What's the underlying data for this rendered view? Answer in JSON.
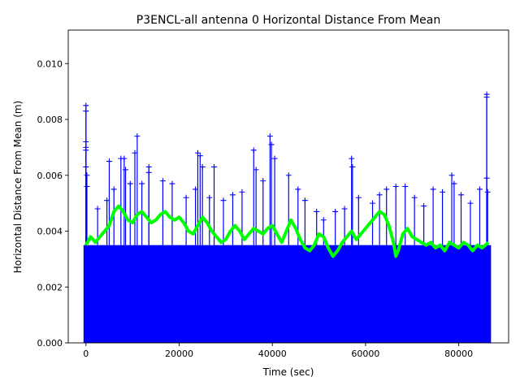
{
  "chart_data": {
    "type": "scatter",
    "title": "P3ENCL-all antenna 0 Horizontal Distance From Mean",
    "xlabel": "Time (sec)",
    "ylabel": "Horizontal Distance From Mean (m)",
    "xlim": [
      -3800,
      90700
    ],
    "ylim": [
      0.0,
      0.0112
    ],
    "x_ticks": [
      0,
      20000,
      40000,
      60000,
      80000
    ],
    "x_tick_labels": [
      "0",
      "20000",
      "40000",
      "60000",
      "80000"
    ],
    "y_ticks": [
      0.0,
      0.002,
      0.004,
      0.006,
      0.008,
      0.01
    ],
    "y_tick_labels": [
      "0.000",
      "0.002",
      "0.004",
      "0.006",
      "0.008",
      "0.010"
    ],
    "grid": false,
    "series": [
      {
        "marker": "+",
        "color": "#0000ff",
        "x_range": [
          0,
          86400
        ],
        "dense_band_y": [
          0.0,
          0.0035
        ],
        "sparse_points": [
          {
            "x": 0,
            "y": 0.0085
          },
          {
            "x": 0,
            "y": 0.0083
          },
          {
            "x": 0,
            "y": 0.0072
          },
          {
            "x": 0,
            "y": 0.007
          },
          {
            "x": 0,
            "y": 0.0069
          },
          {
            "x": 0,
            "y": 0.0063
          },
          {
            "x": 200,
            "y": 0.006
          },
          {
            "x": 200,
            "y": 0.0056
          },
          {
            "x": 2500,
            "y": 0.0048
          },
          {
            "x": 4500,
            "y": 0.0051
          },
          {
            "x": 5000,
            "y": 0.0065
          },
          {
            "x": 6000,
            "y": 0.0055
          },
          {
            "x": 7500,
            "y": 0.0066
          },
          {
            "x": 8200,
            "y": 0.0066
          },
          {
            "x": 8500,
            "y": 0.0062
          },
          {
            "x": 9500,
            "y": 0.0057
          },
          {
            "x": 10500,
            "y": 0.0068
          },
          {
            "x": 11000,
            "y": 0.0074
          },
          {
            "x": 12000,
            "y": 0.0057
          },
          {
            "x": 13500,
            "y": 0.0063
          },
          {
            "x": 13500,
            "y": 0.0061
          },
          {
            "x": 16500,
            "y": 0.0058
          },
          {
            "x": 18500,
            "y": 0.0057
          },
          {
            "x": 21500,
            "y": 0.0052
          },
          {
            "x": 23500,
            "y": 0.0055
          },
          {
            "x": 24000,
            "y": 0.0068
          },
          {
            "x": 24500,
            "y": 0.0067
          },
          {
            "x": 25000,
            "y": 0.0063
          },
          {
            "x": 26500,
            "y": 0.0052
          },
          {
            "x": 27500,
            "y": 0.0063
          },
          {
            "x": 29500,
            "y": 0.0051
          },
          {
            "x": 31500,
            "y": 0.0053
          },
          {
            "x": 33500,
            "y": 0.0054
          },
          {
            "x": 36000,
            "y": 0.0069
          },
          {
            "x": 36500,
            "y": 0.0062
          },
          {
            "x": 38000,
            "y": 0.0058
          },
          {
            "x": 39500,
            "y": 0.0074
          },
          {
            "x": 39800,
            "y": 0.0071
          },
          {
            "x": 40500,
            "y": 0.0066
          },
          {
            "x": 43500,
            "y": 0.006
          },
          {
            "x": 45500,
            "y": 0.0055
          },
          {
            "x": 47000,
            "y": 0.0051
          },
          {
            "x": 49500,
            "y": 0.0047
          },
          {
            "x": 51000,
            "y": 0.0044
          },
          {
            "x": 53500,
            "y": 0.0047
          },
          {
            "x": 55500,
            "y": 0.0048
          },
          {
            "x": 57000,
            "y": 0.0066
          },
          {
            "x": 57200,
            "y": 0.0063
          },
          {
            "x": 58500,
            "y": 0.0052
          },
          {
            "x": 61500,
            "y": 0.005
          },
          {
            "x": 63000,
            "y": 0.0053
          },
          {
            "x": 64500,
            "y": 0.0055
          },
          {
            "x": 66500,
            "y": 0.0056
          },
          {
            "x": 68500,
            "y": 0.0056
          },
          {
            "x": 70500,
            "y": 0.0052
          },
          {
            "x": 72500,
            "y": 0.0049
          },
          {
            "x": 74500,
            "y": 0.0055
          },
          {
            "x": 76500,
            "y": 0.0054
          },
          {
            "x": 78500,
            "y": 0.006
          },
          {
            "x": 79000,
            "y": 0.0057
          },
          {
            "x": 80500,
            "y": 0.0053
          },
          {
            "x": 82500,
            "y": 0.005
          },
          {
            "x": 84500,
            "y": 0.0055
          },
          {
            "x": 86000,
            "y": 0.0089
          },
          {
            "x": 86000,
            "y": 0.0088
          },
          {
            "x": 86000,
            "y": 0.0059
          },
          {
            "x": 86200,
            "y": 0.0054
          }
        ]
      },
      {
        "line": "running-mean",
        "color": "#00ff00",
        "points": [
          {
            "x": 0,
            "y": 0.0035
          },
          {
            "x": 1000,
            "y": 0.0038
          },
          {
            "x": 2000,
            "y": 0.0036
          },
          {
            "x": 3000,
            "y": 0.0038
          },
          {
            "x": 4000,
            "y": 0.004
          },
          {
            "x": 5000,
            "y": 0.0042
          },
          {
            "x": 6000,
            "y": 0.0047
          },
          {
            "x": 7000,
            "y": 0.0049
          },
          {
            "x": 8000,
            "y": 0.0047
          },
          {
            "x": 9000,
            "y": 0.0044
          },
          {
            "x": 10000,
            "y": 0.0043
          },
          {
            "x": 11000,
            "y": 0.0046
          },
          {
            "x": 12000,
            "y": 0.0047
          },
          {
            "x": 13000,
            "y": 0.0045
          },
          {
            "x": 14000,
            "y": 0.0043
          },
          {
            "x": 15000,
            "y": 0.0044
          },
          {
            "x": 16000,
            "y": 0.0046
          },
          {
            "x": 17000,
            "y": 0.0047
          },
          {
            "x": 18000,
            "y": 0.0045
          },
          {
            "x": 19000,
            "y": 0.0044
          },
          {
            "x": 20000,
            "y": 0.0045
          },
          {
            "x": 21000,
            "y": 0.0043
          },
          {
            "x": 22000,
            "y": 0.004
          },
          {
            "x": 23000,
            "y": 0.0039
          },
          {
            "x": 24000,
            "y": 0.0042
          },
          {
            "x": 25000,
            "y": 0.0045
          },
          {
            "x": 26000,
            "y": 0.0043
          },
          {
            "x": 27000,
            "y": 0.004
          },
          {
            "x": 28000,
            "y": 0.0038
          },
          {
            "x": 29000,
            "y": 0.0036
          },
          {
            "x": 30000,
            "y": 0.0037
          },
          {
            "x": 31000,
            "y": 0.004
          },
          {
            "x": 32000,
            "y": 0.0042
          },
          {
            "x": 33000,
            "y": 0.004
          },
          {
            "x": 34000,
            "y": 0.0037
          },
          {
            "x": 35000,
            "y": 0.0039
          },
          {
            "x": 36000,
            "y": 0.0041
          },
          {
            "x": 37000,
            "y": 0.004
          },
          {
            "x": 38000,
            "y": 0.0039
          },
          {
            "x": 39000,
            "y": 0.0041
          },
          {
            "x": 40000,
            "y": 0.0042
          },
          {
            "x": 41000,
            "y": 0.0039
          },
          {
            "x": 42000,
            "y": 0.0036
          },
          {
            "x": 43000,
            "y": 0.004
          },
          {
            "x": 44000,
            "y": 0.0044
          },
          {
            "x": 45000,
            "y": 0.0041
          },
          {
            "x": 46000,
            "y": 0.0037
          },
          {
            "x": 47000,
            "y": 0.0034
          },
          {
            "x": 48000,
            "y": 0.0033
          },
          {
            "x": 49000,
            "y": 0.0035
          },
          {
            "x": 50000,
            "y": 0.0039
          },
          {
            "x": 51000,
            "y": 0.0038
          },
          {
            "x": 52000,
            "y": 0.0034
          },
          {
            "x": 53000,
            "y": 0.0031
          },
          {
            "x": 54000,
            "y": 0.0033
          },
          {
            "x": 55000,
            "y": 0.0036
          },
          {
            "x": 56000,
            "y": 0.0038
          },
          {
            "x": 57000,
            "y": 0.004
          },
          {
            "x": 58000,
            "y": 0.0037
          },
          {
            "x": 59000,
            "y": 0.0039
          },
          {
            "x": 60000,
            "y": 0.0041
          },
          {
            "x": 61000,
            "y": 0.0043
          },
          {
            "x": 62000,
            "y": 0.0045
          },
          {
            "x": 63000,
            "y": 0.0047
          },
          {
            "x": 64000,
            "y": 0.0046
          },
          {
            "x": 65000,
            "y": 0.0042
          },
          {
            "x": 66000,
            "y": 0.0036
          },
          {
            "x": 66500,
            "y": 0.0031
          },
          {
            "x": 67000,
            "y": 0.0033
          },
          {
            "x": 68000,
            "y": 0.0039
          },
          {
            "x": 69000,
            "y": 0.0041
          },
          {
            "x": 70000,
            "y": 0.0038
          },
          {
            "x": 71000,
            "y": 0.0037
          },
          {
            "x": 72000,
            "y": 0.0036
          },
          {
            "x": 73000,
            "y": 0.0035
          },
          {
            "x": 74000,
            "y": 0.0036
          },
          {
            "x": 75000,
            "y": 0.0034
          },
          {
            "x": 76000,
            "y": 0.0035
          },
          {
            "x": 77000,
            "y": 0.0033
          },
          {
            "x": 78000,
            "y": 0.0036
          },
          {
            "x": 79000,
            "y": 0.0035
          },
          {
            "x": 80000,
            "y": 0.0034
          },
          {
            "x": 81000,
            "y": 0.0036
          },
          {
            "x": 82000,
            "y": 0.0035
          },
          {
            "x": 83000,
            "y": 0.0033
          },
          {
            "x": 84000,
            "y": 0.0035
          },
          {
            "x": 85000,
            "y": 0.0034
          },
          {
            "x": 86400,
            "y": 0.0036
          }
        ]
      }
    ]
  }
}
